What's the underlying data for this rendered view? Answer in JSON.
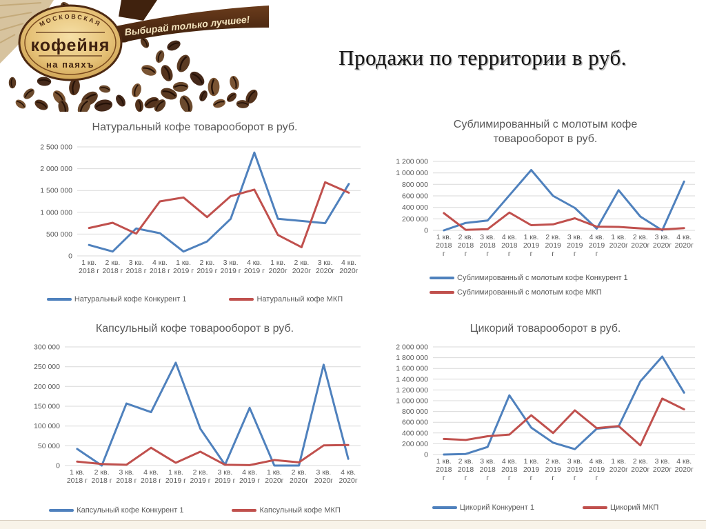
{
  "page_title": "Продажи по территории в руб.",
  "logo": {
    "arc_text": "МОСКОВСКАЯ",
    "main_text": "кофейня",
    "sub_text": "на паяхъ",
    "ribbon_text": "Выбирай только лучшее!"
  },
  "colors": {
    "competitor_line": "#4F81BD",
    "mkp_line": "#C0504D",
    "gridline": "#D9D9D9",
    "chart_text": "#595959"
  },
  "chart_data": [
    {
      "type": "line",
      "title": "Натуральный кофе товарооборот в руб.",
      "categories": [
        [
          "1 кв.",
          "2018 г"
        ],
        [
          "2 кв.",
          "2018 г"
        ],
        [
          "3 кв.",
          "2018 г"
        ],
        [
          "4 кв.",
          "2018 г"
        ],
        [
          "1 кв.",
          "2019 г"
        ],
        [
          "2 кв.",
          "2019 г"
        ],
        [
          "3 кв.",
          "2019 г"
        ],
        [
          "4 кв.",
          "2019 г"
        ],
        [
          "1 кв.",
          "2020г"
        ],
        [
          "2 кв.",
          "2020г"
        ],
        [
          "3 кв.",
          "2020г"
        ],
        [
          "4 кв.",
          "2020г"
        ]
      ],
      "series": [
        {
          "name": "Натуральный кофе Конкурент 1",
          "color": "#4F81BD",
          "values": [
            250000,
            100000,
            630000,
            520000,
            100000,
            330000,
            850000,
            2370000,
            850000,
            800000,
            750000,
            1650000
          ]
        },
        {
          "name": "Натуральный кофе МКП",
          "color": "#C0504D",
          "values": [
            640000,
            760000,
            510000,
            1250000,
            1340000,
            890000,
            1370000,
            1520000,
            480000,
            200000,
            1690000,
            1450000
          ]
        }
      ],
      "ylim": [
        0,
        2500000
      ],
      "ytick_step": 500000,
      "grid": true,
      "legend_position": "bottom"
    },
    {
      "type": "line",
      "title": "Сублимированный с молотым кофе товарооборот в руб.",
      "categories": [
        [
          "1 кв.",
          "2018",
          "г"
        ],
        [
          "2 кв.",
          "2018",
          "г"
        ],
        [
          "3 кв.",
          "2018",
          "г"
        ],
        [
          "4 кв.",
          "2018",
          "г"
        ],
        [
          "1 кв.",
          "2019",
          "г"
        ],
        [
          "2 кв.",
          "2019",
          "г"
        ],
        [
          "3 кв.",
          "2019",
          "г"
        ],
        [
          "4 кв.",
          "2019",
          "г"
        ],
        [
          "1 кв.",
          "2020г"
        ],
        [
          "2 кв.",
          "2020г"
        ],
        [
          "3 кв.",
          "2020г"
        ],
        [
          "4 кв.",
          "2020г"
        ]
      ],
      "series": [
        {
          "name": "Сублимированный с молотым кофе Конкурент 1",
          "color": "#4F81BD",
          "values": [
            0,
            130000,
            170000,
            610000,
            1050000,
            600000,
            390000,
            30000,
            700000,
            240000,
            0,
            850000
          ]
        },
        {
          "name": "Сублимированный с молотым кофе МКП",
          "color": "#C0504D",
          "values": [
            300000,
            10000,
            20000,
            310000,
            90000,
            105000,
            210000,
            65000,
            60000,
            35000,
            15000,
            40000
          ]
        }
      ],
      "ylim": [
        0,
        1200000
      ],
      "ytick_step": 200000,
      "grid": true,
      "legend_position": "bottom"
    },
    {
      "type": "line",
      "title": "Капсульный кофе товарооборот в руб.",
      "categories": [
        [
          "1 кв.",
          "2018 г"
        ],
        [
          "2 кв.",
          "2018 г"
        ],
        [
          "3 кв.",
          "2018 г"
        ],
        [
          "4 кв.",
          "2018 г"
        ],
        [
          "1 кв.",
          "2019 г"
        ],
        [
          "2 кв.",
          "2019 г"
        ],
        [
          "3 кв.",
          "2019 г"
        ],
        [
          "4 кв.",
          "2019 г"
        ],
        [
          "1 кв.",
          "2020г"
        ],
        [
          "2 кв.",
          "2020г"
        ],
        [
          "3 кв.",
          "2020г"
        ],
        [
          "4 кв.",
          "2020г"
        ]
      ],
      "series": [
        {
          "name": "Капсульный кофе Конкурент 1",
          "color": "#4F81BD",
          "values": [
            42000,
            0,
            157000,
            135000,
            260000,
            93000,
            2000,
            146000,
            0,
            0,
            255000,
            17000
          ]
        },
        {
          "name": "Капсульный кофе МКП",
          "color": "#C0504D",
          "values": [
            10000,
            4000,
            2000,
            45000,
            7000,
            35000,
            2000,
            1000,
            14000,
            8000,
            51000,
            52000
          ]
        }
      ],
      "ylim": [
        0,
        300000
      ],
      "ytick_step": 50000,
      "grid": true,
      "legend_position": "bottom"
    },
    {
      "type": "line",
      "title": "Цикорий товарооборот в руб.",
      "categories": [
        [
          "1 кв.",
          "2018",
          "г"
        ],
        [
          "2 кв.",
          "2018",
          "г"
        ],
        [
          "3 кв.",
          "2018",
          "г"
        ],
        [
          "4 кв.",
          "2018",
          "г"
        ],
        [
          "1 кв.",
          "2019",
          "г"
        ],
        [
          "2 кв.",
          "2019",
          "г"
        ],
        [
          "3 кв.",
          "2019",
          "г"
        ],
        [
          "4 кв.",
          "2019",
          "г"
        ],
        [
          "1 кв.",
          "2020г"
        ],
        [
          "2 кв.",
          "2020г"
        ],
        [
          "3 кв.",
          "2020г"
        ],
        [
          "4 кв.",
          "2020г"
        ]
      ],
      "series": [
        {
          "name": "Цикорий Конкурент 1",
          "color": "#4F81BD",
          "values": [
            0,
            10000,
            140000,
            1100000,
            500000,
            220000,
            100000,
            480000,
            520000,
            1360000,
            1820000,
            1150000
          ]
        },
        {
          "name": "Цикорий МКП",
          "color": "#C0504D",
          "values": [
            290000,
            270000,
            340000,
            370000,
            730000,
            400000,
            820000,
            490000,
            530000,
            170000,
            1040000,
            840000
          ]
        }
      ],
      "ylim": [
        0,
        2000000
      ],
      "ytick_step": 200000,
      "grid": true,
      "legend_position": "bottom"
    }
  ]
}
